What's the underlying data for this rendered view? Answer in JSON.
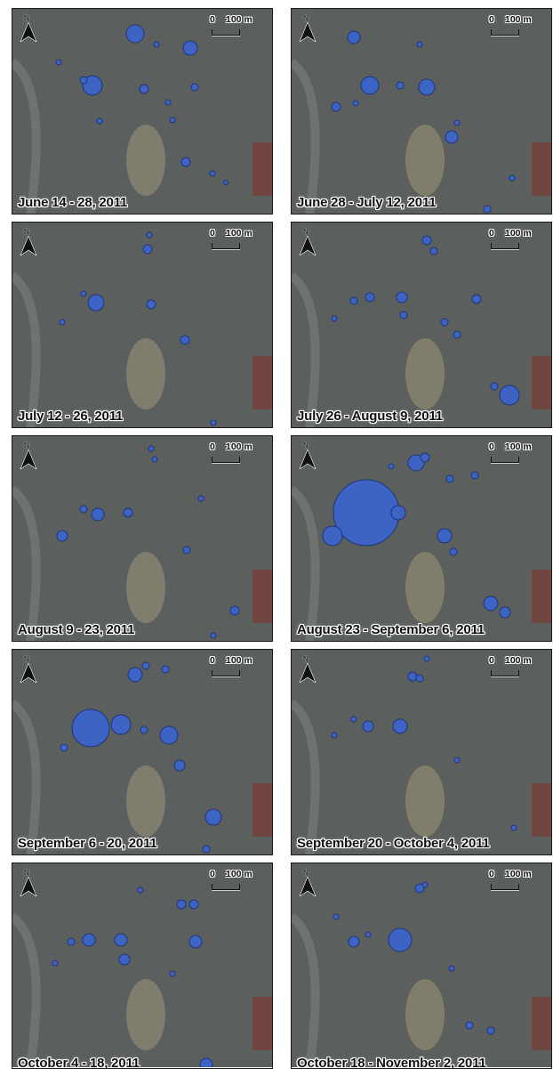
{
  "colors": {
    "bubble_fill": "#3d63c4",
    "bubble_stroke": "#1f3578",
    "background_imagery": "#5a5e5c"
  },
  "north_arrow": {
    "label": "N",
    "icon": "north-arrow-icon"
  },
  "scale_bar": {
    "zero_label": "0",
    "distance_label": "100 m"
  },
  "panels": [
    {
      "date_label": "June 14 - 28, 2011"
    },
    {
      "date_label": "June 28 - July 12, 2011"
    },
    {
      "date_label": "July 12 - 26, 2011"
    },
    {
      "date_label": "July 26 - August 9, 2011"
    },
    {
      "date_label": "August 9 - 23, 2011"
    },
    {
      "date_label": "August 23 - September 6, 2011"
    },
    {
      "date_label": "September 6 - 20, 2011"
    },
    {
      "date_label": "September 20 - October 4, 2011"
    },
    {
      "date_label": "October 4 - 18, 2011"
    },
    {
      "date_label": "October 18 - November 2, 2011"
    }
  ]
}
